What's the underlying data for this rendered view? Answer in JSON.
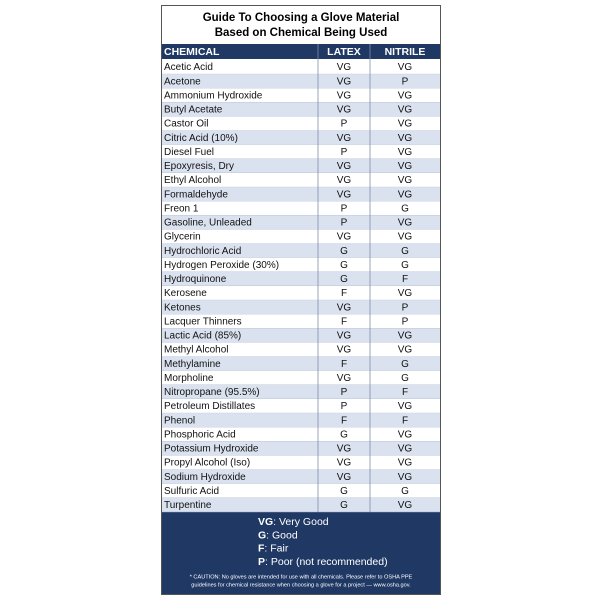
{
  "header": {
    "title_line1": "Guide To Choosing a Glove Material",
    "title_line2": "Based on Chemical Being Used"
  },
  "table": {
    "columns": [
      "CHEMICAL",
      "LATEX",
      "NITRILE"
    ],
    "rows": [
      [
        "Acetic Acid",
        "VG",
        "VG"
      ],
      [
        "Acetone",
        "VG",
        "P"
      ],
      [
        "Ammonium Hydroxide",
        "VG",
        "VG"
      ],
      [
        "Butyl Acetate",
        "VG",
        "VG"
      ],
      [
        "Castor Oil",
        "P",
        "VG"
      ],
      [
        "Citric Acid (10%)",
        "VG",
        "VG"
      ],
      [
        "Diesel Fuel",
        "P",
        "VG"
      ],
      [
        "Epoxyresis, Dry",
        "VG",
        "VG"
      ],
      [
        "Ethyl Alcohol",
        "VG",
        "VG"
      ],
      [
        "Formaldehyde",
        "VG",
        "VG"
      ],
      [
        "Freon 1",
        "P",
        "G"
      ],
      [
        "Gasoline, Unleaded",
        "P",
        "VG"
      ],
      [
        "Glycerin",
        "VG",
        "VG"
      ],
      [
        "Hydrochloric Acid",
        "G",
        "G"
      ],
      [
        "Hydrogen Peroxide (30%)",
        "G",
        "G"
      ],
      [
        "Hydroquinone",
        "G",
        "F"
      ],
      [
        "Kerosene",
        "F",
        "VG"
      ],
      [
        "Ketones",
        "VG",
        "P"
      ],
      [
        "Lacquer Thinners",
        "F",
        "P"
      ],
      [
        "Lactic Acid (85%)",
        "VG",
        "VG"
      ],
      [
        "Methyl Alcohol",
        "VG",
        "VG"
      ],
      [
        "Methylamine",
        "F",
        "G"
      ],
      [
        "Morpholine",
        "VG",
        "G"
      ],
      [
        "Nitropropane (95.5%)",
        "P",
        "F"
      ],
      [
        "Petroleum Distillates",
        "P",
        "VG"
      ],
      [
        "Phenol",
        "F",
        "F"
      ],
      [
        "Phosphoric Acid",
        "G",
        "VG"
      ],
      [
        "Potassium Hydroxide",
        "VG",
        "VG"
      ],
      [
        "Propyl Alcohol (Iso)",
        "VG",
        "VG"
      ],
      [
        "Sodium Hydroxide",
        "VG",
        "VG"
      ],
      [
        "Sulfuric Acid",
        "G",
        "G"
      ],
      [
        "Turpentine",
        "G",
        "VG"
      ]
    ]
  },
  "legend": [
    {
      "key": "VG",
      "text": ": Very Good"
    },
    {
      "key": "G",
      "text": ": Good"
    },
    {
      "key": "F",
      "text": ": Fair"
    },
    {
      "key": "P",
      "text": ": Poor (not recommended)"
    }
  ],
  "caution": {
    "line1": "* CAUTION: No gloves are intended for use with all chemicals. Please refer to OSHA PPE",
    "line2": "guidelines for chemical resistance when choosing a glove for a project — www.osha.gov."
  }
}
